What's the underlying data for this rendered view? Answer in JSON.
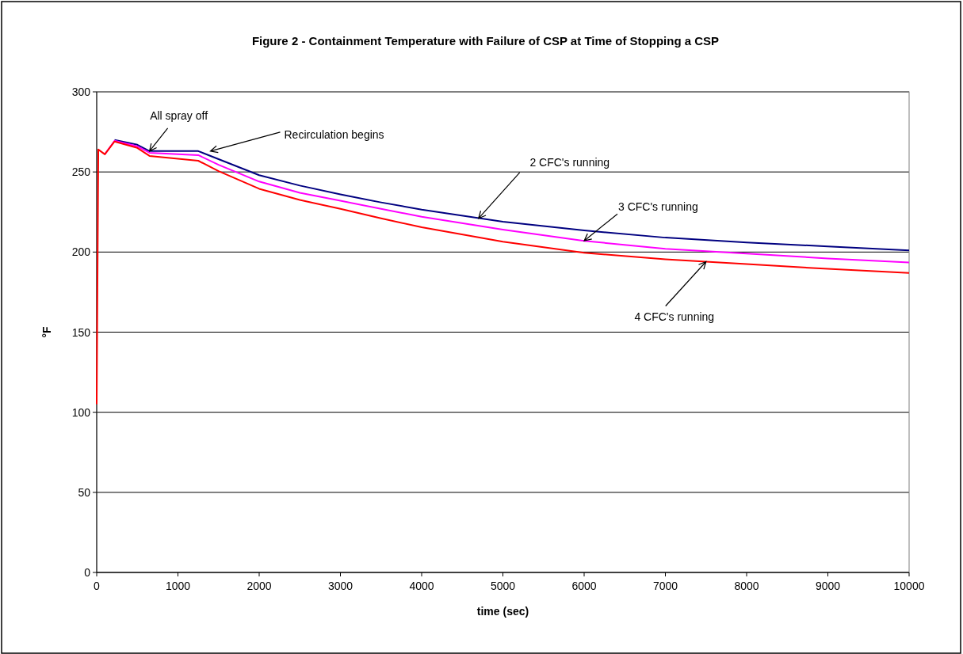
{
  "chart_data": {
    "type": "line",
    "title": "Figure 2 - Containment Temperature with Failure of CSP at Time of Stopping a CSP",
    "xlabel": "time (sec)",
    "ylabel": "°F",
    "xlim": [
      0,
      10000
    ],
    "xticks": [
      0,
      1000,
      2000,
      3000,
      4000,
      5000,
      6000,
      7000,
      8000,
      9000,
      10000
    ],
    "ylim": [
      0,
      300
    ],
    "yticks": [
      0,
      50,
      100,
      150,
      200,
      250,
      300
    ],
    "grid": "y",
    "line_style": "solid",
    "marker": "none",
    "series": [
      {
        "color": "#000080",
        "x": [
          220,
          500,
          650,
          1250,
          1500,
          2000,
          2500,
          3000,
          3500,
          4000,
          5000,
          6000,
          7000,
          8000,
          9000,
          10000
        ],
        "values": [
          270,
          267,
          263,
          263,
          258,
          248,
          241.5,
          236,
          231,
          226.5,
          219,
          213.5,
          209,
          206,
          203.5,
          201
        ]
      },
      {
        "color": "#ff00ff",
        "x": [
          100,
          220,
          500,
          650,
          1250,
          1500,
          2000,
          2500,
          3000,
          3500,
          4000,
          5000,
          6000,
          7000,
          8000,
          9000,
          10000
        ],
        "values": [
          261,
          269.5,
          266,
          262,
          260.5,
          254.5,
          244,
          237,
          232,
          227,
          222,
          214,
          207,
          202,
          199,
          196,
          193.5
        ]
      },
      {
        "color": "#ff0000",
        "x": [
          0,
          20,
          100,
          220,
          500,
          650,
          1250,
          1500,
          2000,
          2500,
          3000,
          3500,
          4000,
          5000,
          6000,
          7000,
          8000,
          9000,
          10000
        ],
        "values": [
          105,
          264,
          261,
          269,
          265,
          260,
          257,
          250.5,
          239.5,
          232.5,
          227,
          221,
          215.5,
          206.5,
          199.5,
          195.5,
          192.5,
          189.5,
          187
        ]
      }
    ],
    "annotations": [
      {
        "text": "All spray off",
        "x": 650,
        "y": 263
      },
      {
        "text": "Recirculation begins",
        "x": 1400,
        "y": 263
      },
      {
        "text": "2 CFC's running",
        "x": 4700,
        "y": 221
      },
      {
        "text": "3 CFC's running",
        "x": 6000,
        "y": 207
      },
      {
        "text": "4 CFC's running",
        "x": 7500,
        "y": 194
      }
    ]
  }
}
